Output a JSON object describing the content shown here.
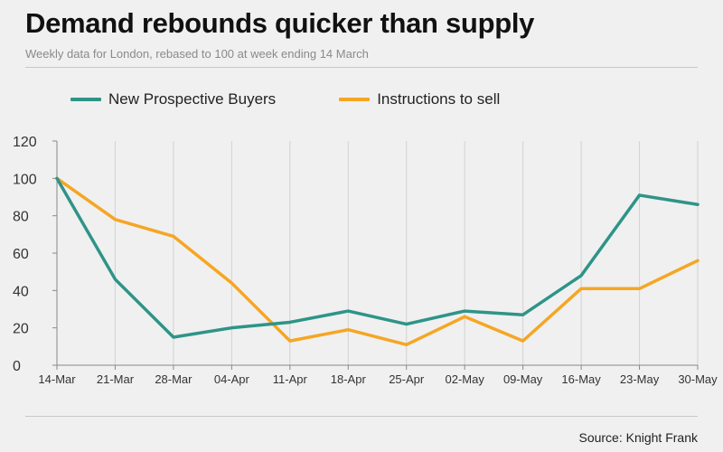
{
  "title": "Demand rebounds quicker than supply",
  "subtitle": "Weekly data for London, rebased to 100 at week ending 14 March",
  "source": "Source: Knight Frank",
  "chart_data": {
    "type": "line",
    "title": "Demand rebounds quicker than supply",
    "subtitle": "Weekly data for London, rebased to 100 at week ending 14 March",
    "xlabel": "",
    "ylabel": "",
    "categories": [
      "14-Mar",
      "21-Mar",
      "28-Mar",
      "04-Apr",
      "11-Apr",
      "18-Apr",
      "25-Apr",
      "02-May",
      "09-May",
      "16-May",
      "23-May",
      "30-May"
    ],
    "ylim": [
      0,
      120
    ],
    "yticks": [
      0,
      20,
      40,
      60,
      80,
      100,
      120
    ],
    "grid": "vertical",
    "legend_position": "top",
    "series": [
      {
        "name": "New Prospective Buyers",
        "color": "#2e9488",
        "values": [
          100,
          46,
          15,
          20,
          23,
          29,
          22,
          29,
          27,
          48,
          91,
          86
        ]
      },
      {
        "name": "Instructions to sell",
        "color": "#f5a623",
        "values": [
          100,
          78,
          69,
          44,
          13,
          19,
          11,
          26,
          13,
          41,
          41,
          56
        ]
      }
    ]
  }
}
